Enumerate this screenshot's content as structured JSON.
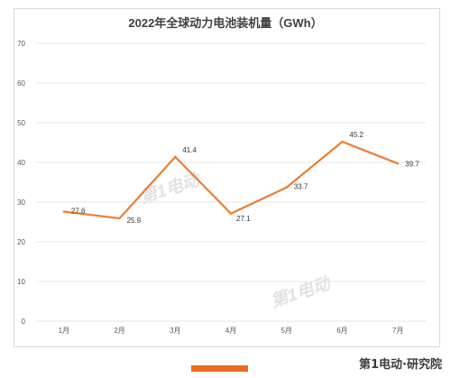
{
  "chart_data": {
    "type": "line",
    "title": "2022年全球动力电池装机量（GWh）",
    "categories": [
      "1月",
      "2月",
      "3月",
      "4月",
      "5月",
      "6月",
      "7月"
    ],
    "series": [
      {
        "values": [
          27.6,
          25.9,
          41.4,
          27.1,
          33.7,
          45.2,
          39.7
        ]
      }
    ],
    "data_labels": [
      "27.6",
      "25.9",
      "41.4",
      "27.1",
      "33.7",
      "45.2",
      "39.7"
    ],
    "yticks": [
      "0",
      "10",
      "20",
      "30",
      "40",
      "50",
      "60",
      "70"
    ],
    "ylim": [
      0,
      70
    ],
    "grid": true,
    "legend": "none",
    "line_color": "#ed7d31",
    "grid_color": "#e6e6e6"
  },
  "watermark": {
    "brand": "第1电动",
    "color": "#e2e2e2"
  },
  "footer": {
    "brand": "第1电动·研究院",
    "accent_color": "#ed6c1f"
  }
}
